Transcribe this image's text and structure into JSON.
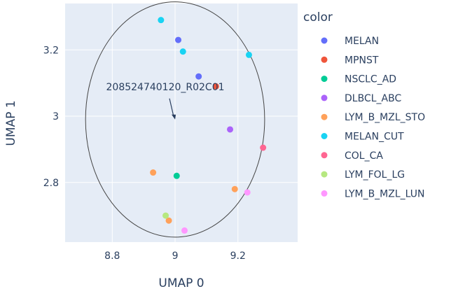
{
  "chart_data": {
    "type": "scatter",
    "xlabel": "UMAP 0",
    "ylabel": "UMAP 1",
    "xlim": [
      8.65,
      9.39
    ],
    "ylim": [
      2.62,
      3.34
    ],
    "x_ticks": [
      8.8,
      9,
      9.2
    ],
    "x_tick_labels": [
      "8.8",
      "9",
      "9.2"
    ],
    "y_ticks": [
      2.8,
      3.0,
      3.2
    ],
    "y_tick_labels": [
      "2.8",
      "3",
      "3.2"
    ],
    "grid": true,
    "legend_title": "color",
    "legend_position": "right",
    "series": [
      {
        "name": "MELAN",
        "color": "#636efa",
        "points": [
          [
            9.01,
            3.23
          ],
          [
            9.075,
            3.12
          ]
        ]
      },
      {
        "name": "MPNST",
        "color": "#EF553B",
        "points": [
          [
            9.13,
            3.09
          ]
        ]
      },
      {
        "name": "NSCLC_AD",
        "color": "#00cc96",
        "points": [
          [
            9.005,
            2.82
          ]
        ]
      },
      {
        "name": "DLBCL_ABC",
        "color": "#ab63fa",
        "points": [
          [
            9.175,
            2.96
          ]
        ]
      },
      {
        "name": "LYM_B_MZL_STO",
        "color": "#FFA15A",
        "points": [
          [
            8.93,
            2.83
          ],
          [
            9.19,
            2.78
          ],
          [
            8.98,
            2.685
          ]
        ]
      },
      {
        "name": "MELAN_CUT",
        "color": "#19d3f3",
        "points": [
          [
            8.955,
            3.29
          ],
          [
            9.025,
            3.195
          ],
          [
            9.235,
            3.185
          ]
        ]
      },
      {
        "name": "COL_CA",
        "color": "#FF6692",
        "points": [
          [
            9.28,
            2.905
          ]
        ]
      },
      {
        "name": "LYM_FOL_LG",
        "color": "#B6E880",
        "points": [
          [
            8.97,
            2.7
          ]
        ]
      },
      {
        "name": "LYM_B_MZL_LUN",
        "color": "#FF97FF",
        "points": [
          [
            9.23,
            2.77
          ],
          [
            9.03,
            2.655
          ]
        ]
      }
    ],
    "shapes": [
      {
        "type": "circle",
        "center": [
          9.0,
          2.99
        ],
        "radius_x": 0.285,
        "radius_y": 0.355
      }
    ],
    "annotations": [
      {
        "text": "208524740120_R02C01",
        "point": [
          9.0,
          2.99
        ]
      }
    ]
  }
}
